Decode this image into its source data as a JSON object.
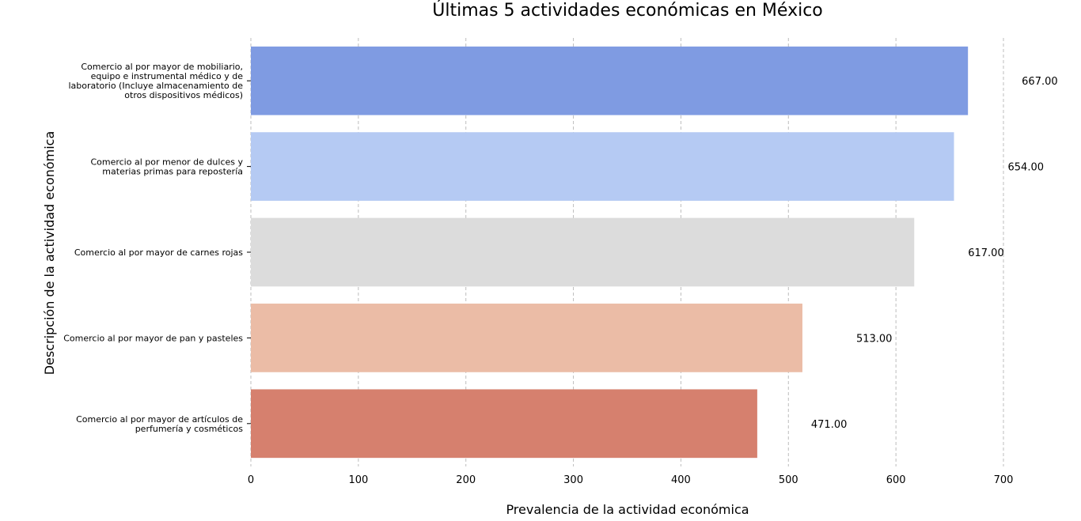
{
  "chart_data": {
    "type": "bar",
    "orientation": "horizontal",
    "title": "Últimas 5 actividades económicas en México",
    "xlabel": "Prevalencia de la actividad económica",
    "ylabel": "Descripción de la actividad económica",
    "xlim": [
      0,
      700
    ],
    "xticks": [
      "0",
      "100",
      "200",
      "300",
      "400",
      "500",
      "600",
      "700"
    ],
    "grid": "vertical-dashed",
    "categories": [
      [
        "Comercio al por mayor de mobiliario,",
        "equipo e instrumental médico y de",
        "laboratorio (Incluye almacenamiento de",
        "otros dispositivos médicos)"
      ],
      [
        "Comercio al por menor de dulces y",
        "materias primas para repostería"
      ],
      [
        "Comercio al por mayor de carnes rojas"
      ],
      [
        "Comercio al por mayor de pan y pasteles"
      ],
      [
        "Comercio al por mayor de artículos de",
        "perfumería y cosméticos"
      ]
    ],
    "values": [
      667,
      654,
      617,
      513,
      471
    ],
    "value_labels": [
      "667.00",
      "654.00",
      "617.00",
      "513.00",
      "471.00"
    ],
    "colors": [
      "#7f9be2",
      "#b5caf3",
      "#dcdcdc",
      "#ebbca6",
      "#d6806e"
    ]
  }
}
